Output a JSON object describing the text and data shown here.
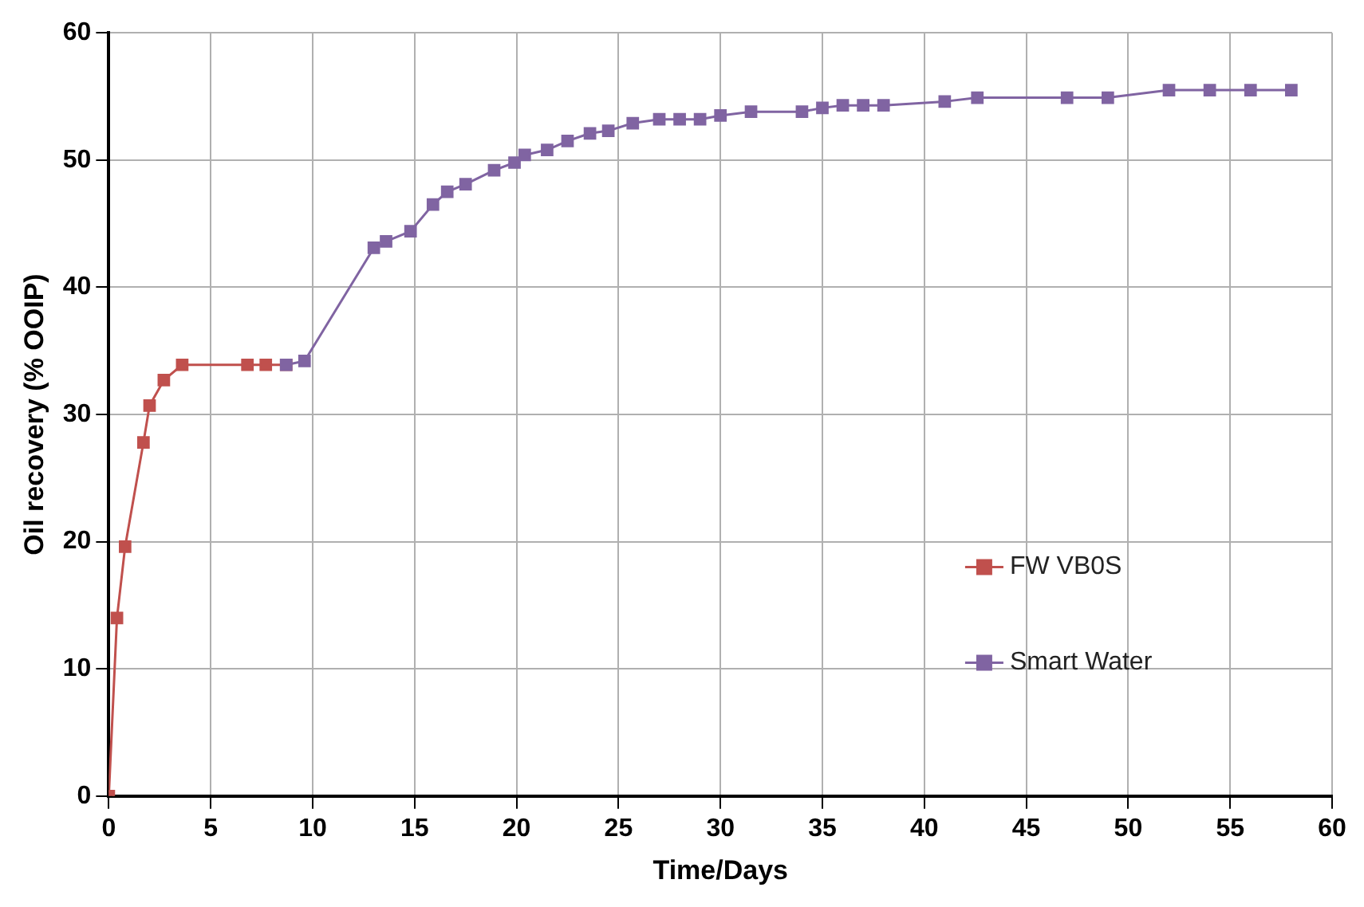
{
  "chart_data": {
    "type": "line",
    "xlabel": "Time/Days",
    "ylabel": "Oil recovery (% OOIP)",
    "xlim": [
      0,
      60
    ],
    "xticks": [
      0,
      5,
      10,
      15,
      20,
      25,
      30,
      35,
      40,
      45,
      50,
      55,
      60
    ],
    "ylim": [
      0,
      60
    ],
    "yticks": [
      0,
      10,
      20,
      30,
      40,
      50,
      60
    ],
    "grid": true,
    "legend": "right",
    "marker": "square",
    "line_style": "solid",
    "series": [
      {
        "name": "FW VB0S",
        "color": "#c0504d",
        "x": [
          0,
          0.4,
          0.8,
          1.7,
          2,
          2.7,
          3.6,
          6.8,
          7.7,
          8.7
        ],
        "values": [
          0,
          14,
          19.6,
          27.8,
          30.7,
          32.7,
          33.9,
          33.9,
          33.9,
          33.9
        ]
      },
      {
        "name": "Smart Water",
        "color": "#8064a2",
        "x": [
          8.7,
          9.6,
          13,
          13.6,
          14.8,
          15.9,
          16.6,
          17.5,
          18.9,
          19.9,
          20.4,
          21.5,
          22.5,
          23.6,
          24.5,
          25.7,
          27,
          28,
          29,
          30,
          31.5,
          34,
          35,
          36,
          37,
          38,
          41,
          42.6,
          47,
          49,
          52,
          54,
          56,
          58
        ],
        "values": [
          33.9,
          34.2,
          43.1,
          43.6,
          44.4,
          46.5,
          47.5,
          48.1,
          49.2,
          49.8,
          50.4,
          50.8,
          51.5,
          52.1,
          52.3,
          52.9,
          53.2,
          53.2,
          53.2,
          53.5,
          53.8,
          53.8,
          54.1,
          54.3,
          54.3,
          54.3,
          54.6,
          54.9,
          54.9,
          54.9,
          55.5,
          55.5,
          55.5,
          55.5
        ]
      }
    ]
  }
}
